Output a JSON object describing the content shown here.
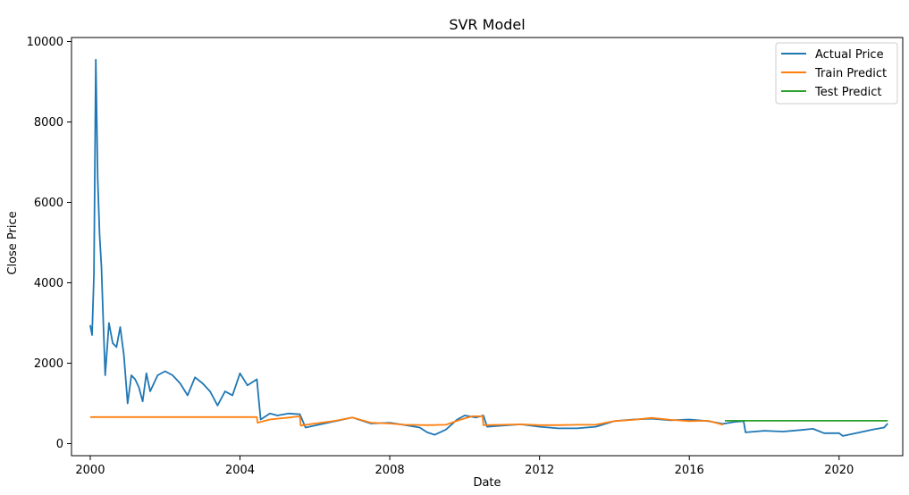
{
  "chart_data": {
    "type": "line",
    "title": "SVR Model",
    "xlabel": "Date",
    "ylabel": "Close Price",
    "xlim": [
      1999.5,
      2021.7
    ],
    "ylim": [
      -300,
      10100
    ],
    "x_ticks": [
      {
        "value": 2000,
        "label": "2000"
      },
      {
        "value": 2004,
        "label": "2004"
      },
      {
        "value": 2008,
        "label": "2008"
      },
      {
        "value": 2012,
        "label": "2012"
      },
      {
        "value": 2016,
        "label": "2016"
      },
      {
        "value": 2020,
        "label": "2020"
      }
    ],
    "y_ticks": [
      {
        "value": 0,
        "label": "0"
      },
      {
        "value": 2000,
        "label": "2000"
      },
      {
        "value": 4000,
        "label": "4000"
      },
      {
        "value": 6000,
        "label": "6000"
      },
      {
        "value": 8000,
        "label": "8000"
      },
      {
        "value": 10000,
        "label": "10000"
      }
    ],
    "grid": false,
    "legend_position": "top-right",
    "series": [
      {
        "name": "Actual Price",
        "color": "#1f77b4",
        "x": [
          2000.0,
          2000.05,
          2000.1,
          2000.15,
          2000.2,
          2000.25,
          2000.3,
          2000.35,
          2000.4,
          2000.5,
          2000.6,
          2000.7,
          2000.8,
          2000.9,
          2001.0,
          2001.1,
          2001.2,
          2001.3,
          2001.4,
          2001.5,
          2001.6,
          2001.8,
          2002.0,
          2002.2,
          2002.4,
          2002.6,
          2002.8,
          2003.0,
          2003.2,
          2003.4,
          2003.6,
          2003.8,
          2004.0,
          2004.2,
          2004.45,
          2004.55,
          2004.8,
          2005.0,
          2005.3,
          2005.6,
          2005.75,
          2006.0,
          2006.5,
          2007.0,
          2007.5,
          2008.0,
          2008.5,
          2008.8,
          2009.0,
          2009.2,
          2009.5,
          2009.8,
          2010.0,
          2010.3,
          2010.5,
          2010.6,
          2011.0,
          2011.5,
          2012.0,
          2012.5,
          2013.0,
          2013.5,
          2014.0,
          2014.5,
          2015.0,
          2015.5,
          2016.0,
          2016.5,
          2016.9,
          2017.2,
          2017.45,
          2017.5,
          2018.0,
          2018.5,
          2019.0,
          2019.3,
          2019.6,
          2020.0,
          2020.1,
          2020.5,
          2020.9,
          2021.2,
          2021.3
        ],
        "y": [
          2950,
          2700,
          4200,
          9550,
          6600,
          5200,
          4400,
          3000,
          1700,
          3000,
          2500,
          2400,
          2900,
          2200,
          1000,
          1700,
          1600,
          1400,
          1050,
          1750,
          1300,
          1700,
          1800,
          1700,
          1500,
          1200,
          1650,
          1500,
          1300,
          950,
          1300,
          1200,
          1750,
          1450,
          1600,
          600,
          750,
          700,
          750,
          730,
          400,
          450,
          550,
          650,
          500,
          520,
          450,
          400,
          280,
          220,
          350,
          600,
          700,
          650,
          700,
          420,
          450,
          480,
          420,
          380,
          380,
          420,
          560,
          600,
          620,
          580,
          600,
          560,
          490,
          540,
          560,
          280,
          320,
          300,
          340,
          370,
          260,
          260,
          190,
          270,
          350,
          400,
          500
        ]
      },
      {
        "name": "Train Predict",
        "color": "#ff7f0e",
        "x": [
          2000.0,
          2004.45,
          2004.47,
          2004.8,
          2005.3,
          2005.6,
          2005.62,
          2006.0,
          2006.5,
          2007.0,
          2007.5,
          2008.0,
          2008.4,
          2009.0,
          2009.5,
          2009.9,
          2010.2,
          2010.48,
          2010.5,
          2011.0,
          2011.5,
          2012.0,
          2012.5,
          2013.0,
          2013.5,
          2014.0,
          2014.5,
          2015.0,
          2015.5,
          2016.0,
          2016.5,
          2016.9
        ],
        "y": [
          660,
          660,
          520,
          600,
          650,
          680,
          450,
          500,
          560,
          650,
          520,
          500,
          470,
          460,
          470,
          600,
          680,
          680,
          460,
          470,
          480,
          460,
          460,
          470,
          470,
          560,
          590,
          640,
          590,
          560,
          570,
          470
        ]
      },
      {
        "name": "Test Predict",
        "color": "#2ca02c",
        "x": [
          2016.95,
          2021.3
        ],
        "y": [
          570,
          570
        ]
      }
    ]
  }
}
